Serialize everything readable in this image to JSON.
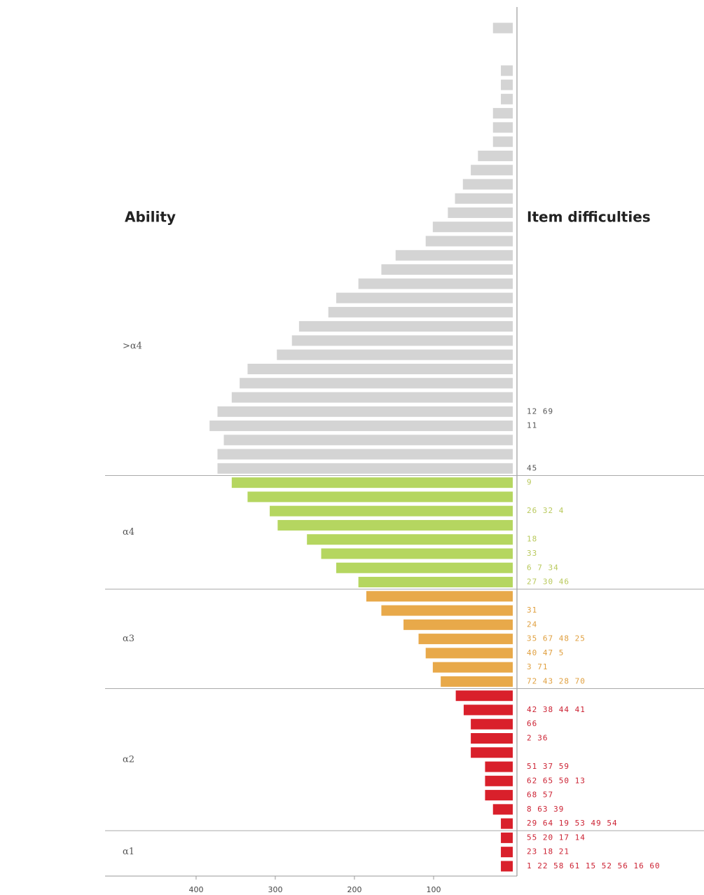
{
  "chart_data": {
    "type": "bar",
    "orientation": "horizontal",
    "x_reversed": true,
    "left_title": "Ability",
    "right_title": "Item difficulties",
    "xlim": [
      0,
      515
    ],
    "xticks": [
      100,
      200,
      300,
      400
    ],
    "bands": [
      {
        "label": ">α4",
        "color": "#d4d4d4",
        "item_color": "#555555",
        "values": [
          25,
          null,
          null,
          15,
          15,
          15,
          25,
          25,
          25,
          44,
          53,
          63,
          73,
          82,
          101,
          110,
          148,
          166,
          195,
          223,
          233,
          270,
          279,
          298,
          335,
          345,
          355,
          373,
          383,
          365,
          373,
          373
        ],
        "items": [
          null,
          null,
          null,
          null,
          null,
          null,
          null,
          null,
          null,
          null,
          null,
          null,
          null,
          null,
          null,
          null,
          null,
          null,
          null,
          null,
          null,
          null,
          null,
          null,
          null,
          null,
          null,
          "12 69",
          "11",
          null,
          null,
          "45"
        ]
      },
      {
        "label": "α4",
        "color": "#b5d660",
        "item_color": "#b9c95c",
        "values": [
          355,
          335,
          307,
          297,
          260,
          242,
          223,
          195
        ],
        "items": [
          "9",
          null,
          "26 32 4",
          null,
          "18",
          "33",
          "6 7 34",
          "27 30 46"
        ]
      },
      {
        "label": "α3",
        "color": "#e8a94a",
        "item_color": "#e0a040",
        "values": [
          185,
          166,
          138,
          119,
          110,
          101,
          91
        ],
        "items": [
          null,
          "31",
          "24",
          "35 67 48 25",
          "40 47 5",
          "3 71",
          "72 43 28 70"
        ]
      },
      {
        "label": "α2",
        "color": "#d9202b",
        "item_color": "#cc2233",
        "values": [
          72,
          62,
          53,
          53,
          53,
          35,
          35,
          35,
          25,
          15
        ],
        "items": [
          null,
          "42 38 44 41",
          "66",
          "2 36",
          null,
          "51 37 59",
          "62 65 50 13",
          "68 57",
          "8 63 39",
          "29 64 19 53 49 54"
        ]
      },
      {
        "label": "α1",
        "color": "#d9202b",
        "item_color": "#cc2233",
        "values": [
          15,
          15,
          15
        ],
        "items": [
          "55 20 17 14",
          "23 18 21",
          "1 22 58 61 15 52 56 16 60"
        ]
      }
    ]
  }
}
